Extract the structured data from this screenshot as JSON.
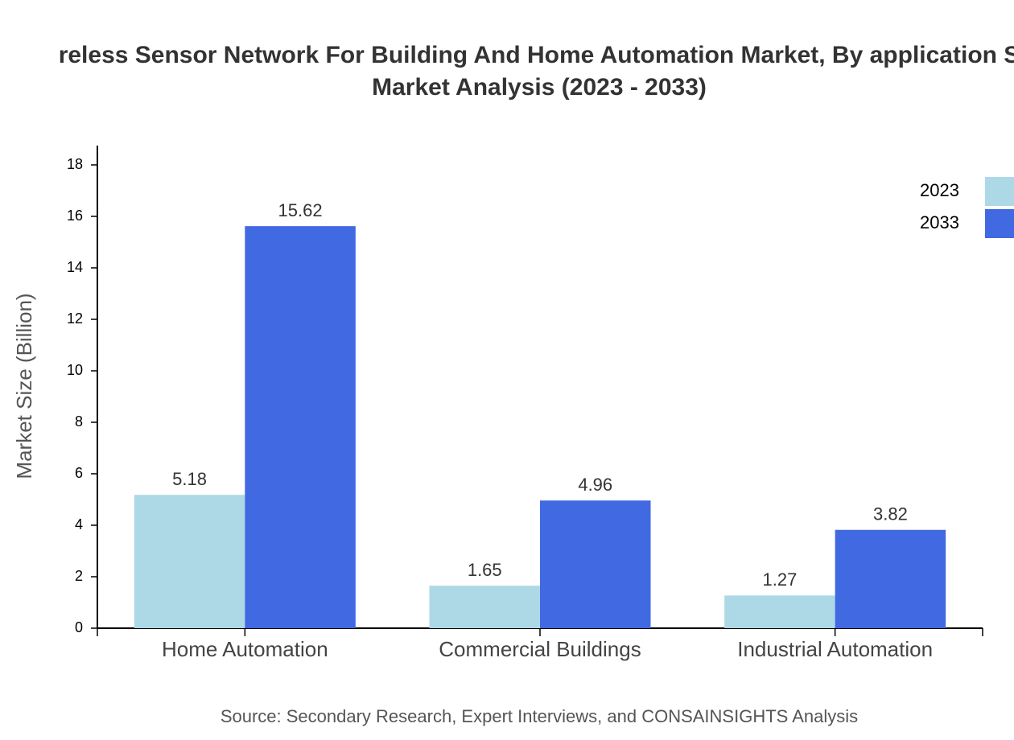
{
  "chart_data": {
    "type": "bar",
    "title_lines": [
      "reless Sensor Network For Building And Home Automation Market, By application S",
      "Market Analysis (2023 - 2033)"
    ],
    "y_label": "Market Size (Billion)",
    "source": "Source: Secondary Research, Expert Interviews, and CONSAINSIGHTS Analysis",
    "categories": [
      "Home Automation",
      "Commercial Buildings",
      "Industrial Automation"
    ],
    "series": [
      {
        "name": "2023",
        "color": "#add8e6",
        "values": [
          5.18,
          1.65,
          1.27
        ]
      },
      {
        "name": "2033",
        "color": "#4169e1",
        "values": [
          15.62,
          4.96,
          3.82
        ]
      }
    ],
    "ylim": [
      0,
      18.75
    ],
    "yticks": [
      0,
      2,
      4,
      6,
      8,
      10,
      12,
      14,
      16,
      18
    ],
    "legend": "top-right"
  }
}
